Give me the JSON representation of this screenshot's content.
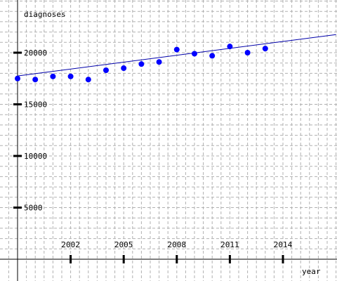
{
  "chart_data": {
    "type": "scatter",
    "title": "",
    "xlabel": "year",
    "ylabel": "diagnoses",
    "xlim": [
      1999,
      2017
    ],
    "ylim": [
      0,
      24000
    ],
    "x_ticks": [
      2002,
      2005,
      2008,
      2011,
      2014
    ],
    "y_ticks": [
      5000,
      10000,
      15000,
      20000
    ],
    "grid": true,
    "legend": "none",
    "series": [
      {
        "x": [
          1999,
          2000,
          2001,
          2002,
          2003,
          2004,
          2005,
          2006,
          2007,
          2008,
          2009,
          2010,
          2011,
          2012,
          2013
        ],
        "y": [
          17500,
          17400,
          17700,
          17700,
          17400,
          18300,
          18500,
          18900,
          19100,
          20300,
          19900,
          19700,
          20600,
          20000,
          20400
        ]
      }
    ],
    "trendline": {
      "x": [
        1999,
        2017
      ],
      "y": [
        17750,
        21750
      ]
    },
    "colors": {
      "points": "#0000ff",
      "trendline": "#0000aa",
      "grid": "#b0b0b0",
      "axis": "#000000"
    }
  }
}
